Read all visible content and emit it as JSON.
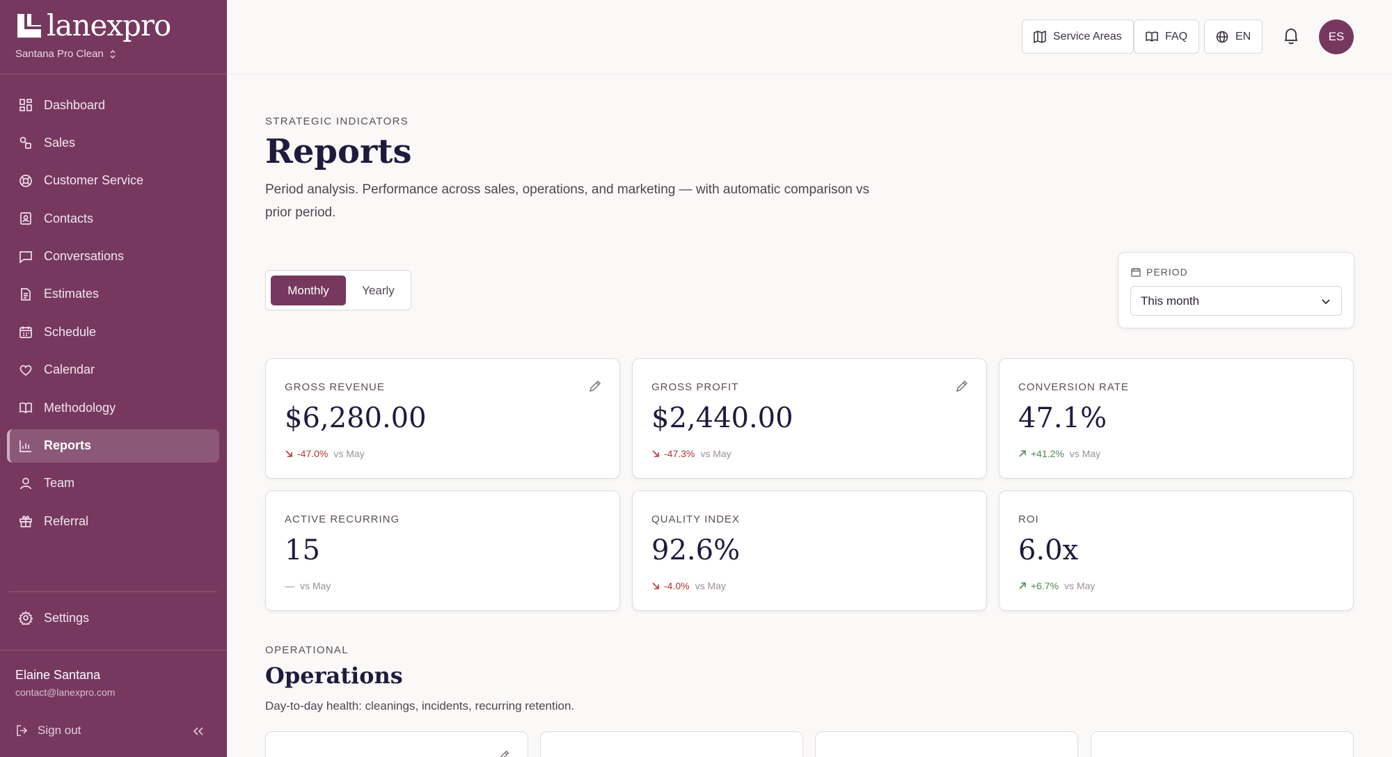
{
  "brand": {
    "name": "lanexpro",
    "org": "Santana Pro Clean"
  },
  "nav": [
    {
      "label": "Dashboard",
      "icon": "dashboard-icon"
    },
    {
      "label": "Sales",
      "icon": "sales-icon"
    },
    {
      "label": "Customer Service",
      "icon": "lifebuoy-icon"
    },
    {
      "label": "Contacts",
      "icon": "contacts-icon"
    },
    {
      "label": "Conversations",
      "icon": "chat-icon"
    },
    {
      "label": "Estimates",
      "icon": "document-icon"
    },
    {
      "label": "Schedule",
      "icon": "schedule-icon"
    },
    {
      "label": "Calendar",
      "icon": "heart-icon"
    },
    {
      "label": "Methodology",
      "icon": "book-icon"
    },
    {
      "label": "Reports",
      "icon": "bar-chart-icon",
      "active": true
    },
    {
      "label": "Team",
      "icon": "user-icon"
    },
    {
      "label": "Referral",
      "icon": "gift-icon"
    }
  ],
  "settings_label": "Settings",
  "user": {
    "name": "Elaine Santana",
    "email": "contact@lanexpro.com"
  },
  "signout_label": "Sign out",
  "topbar": {
    "service_areas": "Service Areas",
    "faq": "FAQ",
    "lang": "EN",
    "avatar": "ES"
  },
  "header": {
    "eyebrow": "STRATEGIC INDICATORS",
    "title": "Reports",
    "lead": "Period analysis. Performance across sales, operations, and marketing — with automatic comparison vs prior period."
  },
  "toggle": {
    "monthly": "Monthly",
    "yearly": "Yearly",
    "selected": "Monthly"
  },
  "period": {
    "label": "PERIOD",
    "value": "This month"
  },
  "kpis": [
    {
      "label": "GROSS REVENUE",
      "value": "$6,280.00",
      "delta": "-47.0%",
      "trend": "down",
      "vs": "vs May",
      "editable": true
    },
    {
      "label": "GROSS PROFIT",
      "value": "$2,440.00",
      "delta": "-47.3%",
      "trend": "down",
      "vs": "vs May",
      "editable": true
    },
    {
      "label": "CONVERSION RATE",
      "value": "47.1%",
      "delta": "+41.2%",
      "trend": "up",
      "vs": "vs May",
      "editable": false
    },
    {
      "label": "ACTIVE RECURRING",
      "value": "15",
      "delta": "—",
      "trend": "flat",
      "vs": "vs May",
      "editable": false
    },
    {
      "label": "QUALITY INDEX",
      "value": "92.6%",
      "delta": "-4.0%",
      "trend": "down",
      "vs": "vs May",
      "editable": false
    },
    {
      "label": "ROI",
      "value": "6.0x",
      "delta": "+6.7%",
      "trend": "up",
      "vs": "vs May",
      "editable": false
    }
  ],
  "operations": {
    "eyebrow": "OPERATIONAL",
    "title": "Operations",
    "subtitle": "Day-to-day health: cleanings, incidents, recurring retention."
  },
  "colors": {
    "accent": "#76385f",
    "negative": "#b1372f",
    "positive": "#4b8a4f",
    "heading": "#1f1a3d"
  }
}
